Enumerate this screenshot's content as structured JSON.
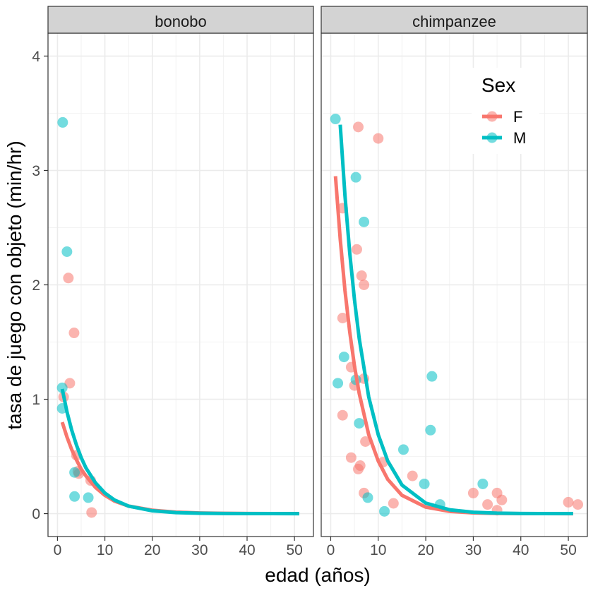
{
  "chart_data": {
    "type": "scatter",
    "xlabel": "edad (años)",
    "ylabel": "tasa de juego con objeto (min/hr)",
    "xlim": [
      -2,
      54
    ],
    "ylim": [
      -0.2,
      4.2
    ],
    "x_ticks": [
      0,
      10,
      20,
      30,
      40,
      50
    ],
    "y_ticks": [
      0,
      1,
      2,
      3,
      4
    ],
    "x_tick_labels": [
      "0",
      "10",
      "20",
      "30",
      "40",
      "50"
    ],
    "y_tick_labels": [
      "0",
      "1",
      "2",
      "3",
      "4"
    ],
    "grid": true,
    "facet_strip_color": "#d3d3d3",
    "legend": {
      "title": "Sex",
      "position": "top-right",
      "entries": [
        {
          "label": "F",
          "color": "#F8766D"
        },
        {
          "label": "M",
          "color": "#00BFC4"
        }
      ]
    },
    "panels": [
      {
        "label": "bonobo",
        "series": [
          {
            "name": "F",
            "color": "#F8766D",
            "points": [
              [
                1.3,
                1.02
              ],
              [
                2.3,
                2.06
              ],
              [
                2.6,
                1.14
              ],
              [
                3.5,
                1.58
              ],
              [
                4.0,
                0.51
              ],
              [
                4.3,
                0.37
              ],
              [
                4.5,
                0.35
              ],
              [
                7.0,
                0.29
              ],
              [
                7.2,
                0.01
              ]
            ],
            "fit": [
              [
                1,
                0.8
              ],
              [
                2,
                0.67
              ],
              [
                3,
                0.56
              ],
              [
                4,
                0.47
              ],
              [
                5,
                0.39
              ],
              [
                6,
                0.33
              ],
              [
                8,
                0.23
              ],
              [
                10,
                0.16
              ],
              [
                12,
                0.11
              ],
              [
                15,
                0.066
              ],
              [
                20,
                0.03
              ],
              [
                25,
                0.013
              ],
              [
                30,
                0.006
              ],
              [
                35,
                0.003
              ],
              [
                40,
                0.001
              ],
              [
                45,
                0.0005
              ],
              [
                51,
                0.0002
              ]
            ]
          },
          {
            "name": "M",
            "color": "#00BFC4",
            "points": [
              [
                1.1,
                3.42
              ],
              [
                2.0,
                2.29
              ],
              [
                1.0,
                1.1
              ],
              [
                1.0,
                0.92
              ],
              [
                3.6,
                0.36
              ],
              [
                3.6,
                0.15
              ],
              [
                6.5,
                0.14
              ]
            ],
            "fit": [
              [
                1,
                1.09
              ],
              [
                2,
                0.89
              ],
              [
                3,
                0.73
              ],
              [
                4,
                0.6
              ],
              [
                5,
                0.49
              ],
              [
                6,
                0.4
              ],
              [
                8,
                0.27
              ],
              [
                10,
                0.18
              ],
              [
                12,
                0.12
              ],
              [
                15,
                0.066
              ],
              [
                20,
                0.025
              ],
              [
                25,
                0.0093
              ],
              [
                30,
                0.0035
              ],
              [
                35,
                0.0013
              ],
              [
                40,
                0.0005
              ],
              [
                45,
                0.0002
              ],
              [
                51,
                0.0001
              ]
            ]
          }
        ]
      },
      {
        "label": "chimpanzee",
        "series": [
          {
            "name": "F",
            "color": "#F8766D",
            "points": [
              [
                5.8,
                3.38
              ],
              [
                10.0,
                3.28
              ],
              [
                2.5,
                2.67
              ],
              [
                5.5,
                2.31
              ],
              [
                6.5,
                2.08
              ],
              [
                7.0,
                2.0
              ],
              [
                2.5,
                1.71
              ],
              [
                4.3,
                1.28
              ],
              [
                7.0,
                1.18
              ],
              [
                5.0,
                1.12
              ],
              [
                2.5,
                0.86
              ],
              [
                7.3,
                0.63
              ],
              [
                4.3,
                0.49
              ],
              [
                6.2,
                0.42
              ],
              [
                5.8,
                0.39
              ],
              [
                11.0,
                0.45
              ],
              [
                17.2,
                0.33
              ],
              [
                7.0,
                0.18
              ],
              [
                13.2,
                0.09
              ],
              [
                30.0,
                0.18
              ],
              [
                33.0,
                0.08
              ],
              [
                35.0,
                0.18
              ],
              [
                35.0,
                0.03
              ],
              [
                36.0,
                0.12
              ],
              [
                50.0,
                0.1
              ],
              [
                52.0,
                0.08
              ]
            ],
            "fit": [
              [
                1,
                2.95
              ],
              [
                2,
                2.4
              ],
              [
                3,
                1.95
              ],
              [
                4,
                1.59
              ],
              [
                5,
                1.29
              ],
              [
                6,
                1.05
              ],
              [
                8,
                0.69
              ],
              [
                10,
                0.46
              ],
              [
                12,
                0.3
              ],
              [
                15,
                0.16
              ],
              [
                20,
                0.057
              ],
              [
                25,
                0.02
              ],
              [
                30,
                0.007
              ],
              [
                35,
                0.0025
              ],
              [
                40,
                0.0009
              ],
              [
                45,
                0.0003
              ],
              [
                51,
                0.0001
              ]
            ]
          },
          {
            "name": "M",
            "color": "#00BFC4",
            "points": [
              [
                1.0,
                3.45
              ],
              [
                5.3,
                2.94
              ],
              [
                7.0,
                2.55
              ],
              [
                2.8,
                1.37
              ],
              [
                1.5,
                1.14
              ],
              [
                5.3,
                1.17
              ],
              [
                21.3,
                1.2
              ],
              [
                6.0,
                0.79
              ],
              [
                21.0,
                0.73
              ],
              [
                15.3,
                0.56
              ],
              [
                19.7,
                0.26
              ],
              [
                32.0,
                0.26
              ],
              [
                7.8,
                0.14
              ],
              [
                23.0,
                0.08
              ],
              [
                11.3,
                0.02
              ]
            ],
            "fit": [
              [
                2,
                3.4
              ],
              [
                3,
                2.78
              ],
              [
                4,
                2.28
              ],
              [
                5,
                1.87
              ],
              [
                6,
                1.53
              ],
              [
                8,
                1.02
              ],
              [
                10,
                0.69
              ],
              [
                12,
                0.46
              ],
              [
                15,
                0.25
              ],
              [
                20,
                0.092
              ],
              [
                25,
                0.034
              ],
              [
                30,
                0.012
              ],
              [
                35,
                0.0045
              ],
              [
                40,
                0.0017
              ],
              [
                45,
                0.0006
              ],
              [
                51,
                0.0002
              ]
            ]
          }
        ]
      }
    ]
  }
}
